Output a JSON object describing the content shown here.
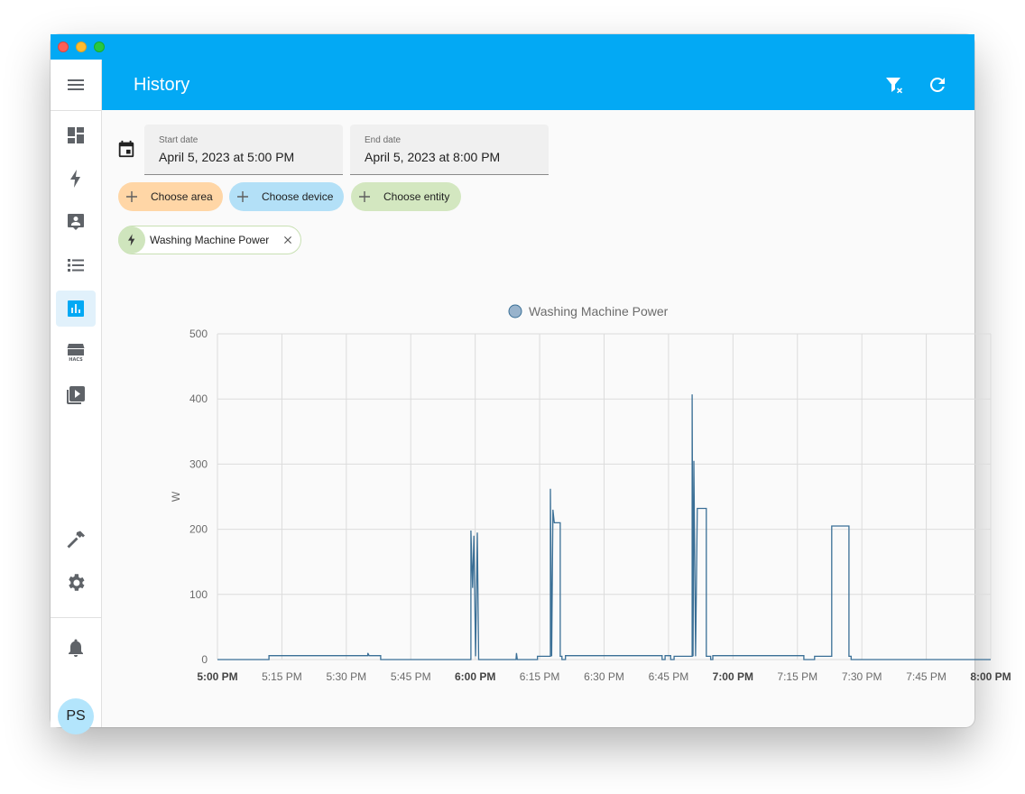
{
  "app": {
    "title": "History",
    "avatar_initials": "PS"
  },
  "sidebar": {
    "items": [
      {
        "icon": "menu-icon"
      },
      {
        "icon": "dashboard-icon"
      },
      {
        "icon": "energy-icon"
      },
      {
        "icon": "logbook-icon"
      },
      {
        "icon": "todo-list-icon"
      },
      {
        "icon": "history-icon",
        "active": true
      },
      {
        "icon": "hacs-store-icon"
      },
      {
        "icon": "media-icon"
      },
      {
        "icon": "developer-tools-hammer-icon"
      },
      {
        "icon": "settings-gear-icon"
      },
      {
        "icon": "notifications-bell-icon"
      }
    ]
  },
  "toolbar": {
    "actions": [
      "clear-filter-icon",
      "refresh-icon"
    ]
  },
  "filters": {
    "start_date": {
      "label": "Start date",
      "value": "April 5, 2023 at 5:00 PM"
    },
    "end_date": {
      "label": "End date",
      "value": "April 5, 2023 at 8:00 PM"
    },
    "choose_area": "Choose area",
    "choose_device": "Choose device",
    "choose_entity": "Choose entity",
    "selected_entity": "Washing Machine Power"
  },
  "colors": {
    "accent": "#03a9f4",
    "area_chip": "#ffd6a6",
    "device_chip": "#b3e0f7",
    "entity_chip": "#d3e7c0",
    "series": "#3a6f96"
  },
  "chart_data": {
    "type": "line",
    "legend": [
      "Washing Machine Power"
    ],
    "ylabel": "W",
    "ylim": [
      0,
      500
    ],
    "y_ticks": [
      0,
      100,
      200,
      300,
      400,
      500
    ],
    "x_ticks": [
      "5:00 PM",
      "5:15 PM",
      "5:30 PM",
      "5:45 PM",
      "6:00 PM",
      "6:15 PM",
      "6:30 PM",
      "6:45 PM",
      "7:00 PM",
      "7:15 PM",
      "7:30 PM",
      "7:45 PM",
      "8:00 PM"
    ],
    "x_ticks_bold": [
      "5:00 PM",
      "6:00 PM",
      "7:00 PM",
      "8:00 PM"
    ],
    "x_range_minutes": [
      0,
      180
    ],
    "grid": true,
    "series": [
      {
        "name": "Washing Machine Power",
        "step": true,
        "points": [
          [
            0,
            0
          ],
          [
            12,
            0
          ],
          [
            12,
            6
          ],
          [
            35,
            6
          ],
          [
            35,
            10
          ],
          [
            35.3,
            6
          ],
          [
            38,
            6
          ],
          [
            38,
            0
          ],
          [
            59,
            0
          ],
          [
            59,
            198
          ],
          [
            59.4,
            110
          ],
          [
            59.7,
            190
          ],
          [
            60.1,
            5
          ],
          [
            60.5,
            195
          ],
          [
            60.8,
            0
          ],
          [
            69.5,
            0
          ],
          [
            69.6,
            10
          ],
          [
            69.8,
            0
          ],
          [
            74.5,
            0
          ],
          [
            74.5,
            5
          ],
          [
            77.5,
            5
          ],
          [
            77.5,
            262
          ],
          [
            77.8,
            5
          ],
          [
            78.1,
            230
          ],
          [
            78.4,
            210
          ],
          [
            79.8,
            210
          ],
          [
            79.8,
            5
          ],
          [
            80.2,
            5
          ],
          [
            80.2,
            0
          ],
          [
            81,
            0
          ],
          [
            81,
            6
          ],
          [
            103.5,
            6
          ],
          [
            103.5,
            0
          ],
          [
            104.2,
            0
          ],
          [
            104.2,
            6
          ],
          [
            105.5,
            6
          ],
          [
            105.5,
            0
          ],
          [
            106.3,
            0
          ],
          [
            106.3,
            5
          ],
          [
            110.5,
            5
          ],
          [
            110.5,
            407
          ],
          [
            110.7,
            5
          ],
          [
            110.9,
            305
          ],
          [
            111.3,
            5
          ],
          [
            111.7,
            232
          ],
          [
            113.8,
            232
          ],
          [
            113.8,
            5
          ],
          [
            114.8,
            5
          ],
          [
            114.8,
            0
          ],
          [
            115.3,
            0
          ],
          [
            115.3,
            6
          ],
          [
            136.5,
            6
          ],
          [
            136.5,
            0
          ],
          [
            139,
            0
          ],
          [
            139,
            5
          ],
          [
            143,
            5
          ],
          [
            143,
            205
          ],
          [
            147,
            205
          ],
          [
            147,
            5
          ],
          [
            147.5,
            5
          ],
          [
            147.5,
            0
          ],
          [
            180,
            0
          ]
        ]
      }
    ]
  }
}
